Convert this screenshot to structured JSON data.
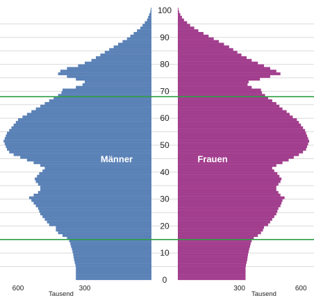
{
  "chart_data": {
    "type": "bar",
    "orientation": "horizontal-pyramid",
    "x_unit_label": "Tausend",
    "x_ticks": [
      600,
      300
    ],
    "age_ticks": [
      0,
      10,
      20,
      30,
      40,
      50,
      60,
      70,
      80,
      90,
      100
    ],
    "x_max": 650,
    "reference_lines_at_age": [
      15,
      68
    ],
    "reference_line_color": "#2ea043",
    "grid": true,
    "series": [
      {
        "name": "Männer",
        "side": "left",
        "color": "#5b82b7",
        "values": [
          340,
          340,
          340,
          340,
          340,
          342,
          345,
          348,
          350,
          352,
          355,
          358,
          362,
          365,
          370,
          380,
          400,
          420,
          430,
          430,
          460,
          470,
          480,
          490,
          500,
          505,
          510,
          520,
          530,
          540,
          550,
          530,
          510,
          500,
          500,
          510,
          520,
          525,
          515,
          505,
          490,
          480,
          500,
          530,
          560,
          590,
          620,
          640,
          650,
          655,
          660,
          665,
          660,
          655,
          650,
          640,
          630,
          620,
          610,
          600,
          580,
          560,
          540,
          520,
          500,
          480,
          460,
          440,
          420,
          405,
          400,
          340,
          310,
          300,
          340,
          380,
          420,
          410,
          380,
          330,
          300,
          270,
          250,
          230,
          210,
          190,
          170,
          150,
          130,
          110,
          95,
          80,
          65,
          50,
          40,
          30,
          20,
          15,
          10,
          5,
          3
        ]
      },
      {
        "name": "Frauen",
        "side": "right",
        "color": "#a23e8e",
        "values": [
          330,
          330,
          330,
          330,
          330,
          332,
          335,
          338,
          340,
          342,
          345,
          348,
          352,
          355,
          360,
          370,
          390,
          405,
          415,
          420,
          440,
          450,
          460,
          470,
          480,
          485,
          490,
          500,
          505,
          510,
          520,
          500,
          490,
          480,
          480,
          490,
          500,
          505,
          495,
          485,
          470,
          460,
          480,
          510,
          540,
          565,
          590,
          610,
          625,
          630,
          635,
          640,
          635,
          630,
          625,
          620,
          610,
          600,
          590,
          580,
          560,
          545,
          530,
          510,
          495,
          480,
          460,
          440,
          425,
          410,
          405,
          360,
          340,
          345,
          400,
          450,
          500,
          480,
          450,
          420,
          390,
          360,
          335,
          310,
          290,
          270,
          250,
          225,
          200,
          175,
          150,
          125,
          100,
          80,
          60,
          45,
          30,
          20,
          12,
          6,
          3
        ]
      }
    ]
  }
}
